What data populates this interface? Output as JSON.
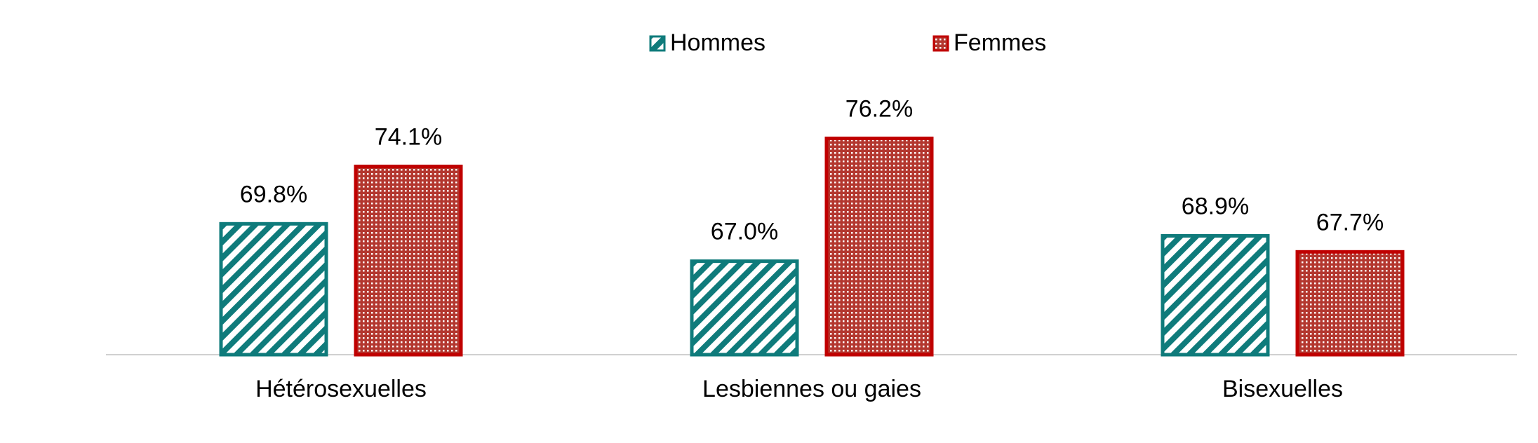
{
  "chart_data": {
    "type": "bar",
    "categories": [
      "Hétérosexuelles",
      "Lesbiennes ou gaies",
      "Bisexuelles"
    ],
    "series": [
      {
        "name": "Hommes",
        "color": "#0f7b7b",
        "values": [
          69.8,
          67.0,
          68.9
        ],
        "value_labels": [
          "69.8%",
          "67.0%",
          "68.9%"
        ]
      },
      {
        "name": "Femmes",
        "color": "#c00000",
        "values": [
          74.1,
          76.2,
          67.7
        ],
        "value_labels": [
          "74.1%",
          "76.2%",
          "67.7%"
        ]
      }
    ],
    "ylim": [
      60,
      80
    ],
    "legend": "top"
  }
}
